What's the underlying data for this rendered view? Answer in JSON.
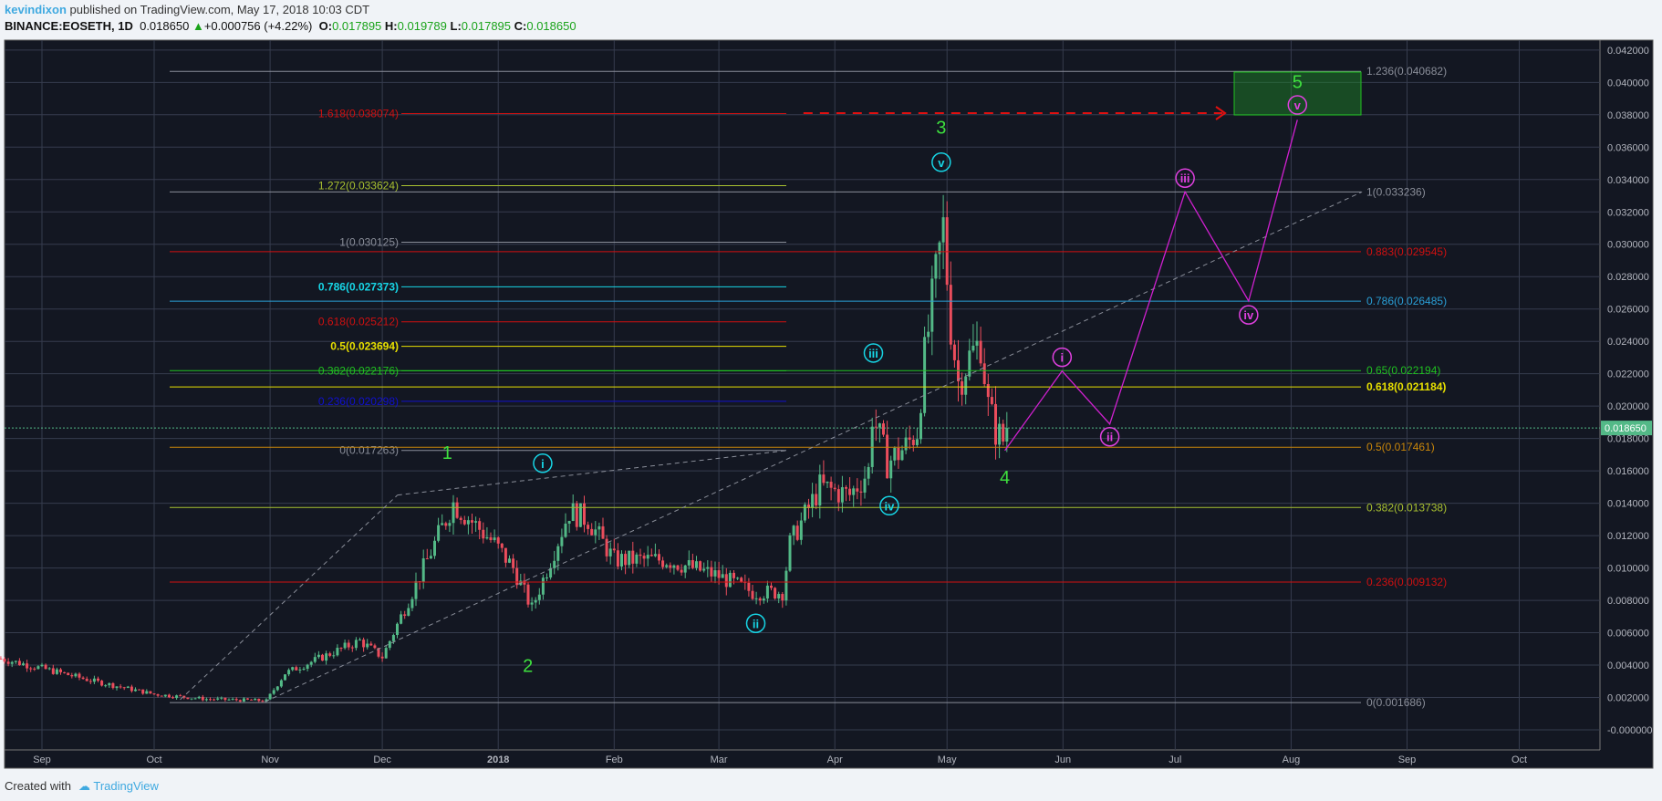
{
  "header": {
    "author": "kevindixon",
    "published": "published on TradingView.com, May 17, 2018 10:03 CDT",
    "symbol": "BINANCE:EOSETH, 1D",
    "last": "0.018650",
    "change": "+0.000756 (+4.22%)",
    "o_label": "O:",
    "o": "0.017895",
    "h_label": "H:",
    "h": "0.019789",
    "l_label": "L:",
    "l": "0.017895",
    "c_label": "C:",
    "c": "0.018650"
  },
  "footer": {
    "created": "Created with",
    "brand": "TradingView"
  },
  "colors": {
    "up": "#53b987",
    "down": "#eb4d5c",
    "bg": "#131722",
    "grid": "#363c4e"
  },
  "chart_data": {
    "type": "candlestick",
    "title": "BINANCE:EOSETH, 1D",
    "ylim": [
      0,
      0.042
    ],
    "yticks": [
      "0.042000",
      "0.040000",
      "0.038000",
      "0.036000",
      "0.034000",
      "0.032000",
      "0.030000",
      "0.028000",
      "0.026000",
      "0.024000",
      "0.022000",
      "0.020000",
      "0.018000",
      "0.016000",
      "0.014000",
      "0.012000",
      "0.010000",
      "0.008000",
      "0.006000",
      "0.004000",
      "0.002000",
      "-0.000000"
    ],
    "xticks": [
      {
        "label": "Sep",
        "date": "2017-09-01"
      },
      {
        "label": "Oct",
        "date": "2017-10-01"
      },
      {
        "label": "Nov",
        "date": "2017-11-01"
      },
      {
        "label": "Dec",
        "date": "2017-12-01"
      },
      {
        "label": "2018",
        "date": "2018-01-01",
        "bold": true
      },
      {
        "label": "Feb",
        "date": "2018-02-01"
      },
      {
        "label": "Mar",
        "date": "2018-03-01"
      },
      {
        "label": "Apr",
        "date": "2018-04-01"
      },
      {
        "label": "May",
        "date": "2018-05-01"
      },
      {
        "label": "Jun",
        "date": "2018-06-01"
      },
      {
        "label": "Jul",
        "date": "2018-07-01"
      },
      {
        "label": "Aug",
        "date": "2018-08-01"
      },
      {
        "label": "Sep",
        "date": "2018-09-01"
      },
      {
        "label": "Oct",
        "date": "2018-10-01"
      }
    ],
    "last_price": {
      "value": 0.01865,
      "label": "0.018650"
    },
    "close_path": [
      [
        "2017-08-21",
        0.0044
      ],
      [
        "2017-09-01",
        0.0038
      ],
      [
        "2017-09-15",
        0.003
      ],
      [
        "2017-10-01",
        0.0022
      ],
      [
        "2017-10-15",
        0.0019
      ],
      [
        "2017-10-31",
        0.0018
      ],
      [
        "2017-11-05",
        0.0035
      ],
      [
        "2017-11-15",
        0.0045
      ],
      [
        "2017-11-25",
        0.0055
      ],
      [
        "2017-12-01",
        0.0045
      ],
      [
        "2017-12-08",
        0.008
      ],
      [
        "2017-12-15",
        0.0115
      ],
      [
        "2017-12-20",
        0.014
      ],
      [
        "2017-12-31",
        0.0115
      ],
      [
        "2018-01-05",
        0.01
      ],
      [
        "2018-01-10",
        0.0075
      ],
      [
        "2018-01-15",
        0.0105
      ],
      [
        "2018-01-20",
        0.0135
      ],
      [
        "2018-01-25",
        0.013
      ],
      [
        "2018-02-01",
        0.0105
      ],
      [
        "2018-02-15",
        0.0105
      ],
      [
        "2018-03-01",
        0.0095
      ],
      [
        "2018-03-10",
        0.0085
      ],
      [
        "2018-03-18",
        0.0085
      ],
      [
        "2018-03-20",
        0.0115
      ],
      [
        "2018-03-28",
        0.015
      ],
      [
        "2018-04-05",
        0.0145
      ],
      [
        "2018-04-10",
        0.016
      ],
      [
        "2018-04-11",
        0.0195
      ],
      [
        "2018-04-15",
        0.0165
      ],
      [
        "2018-04-20",
        0.0175
      ],
      [
        "2018-04-23",
        0.0185
      ],
      [
        "2018-04-25",
        0.023
      ],
      [
        "2018-04-28",
        0.028
      ],
      [
        "2018-04-30",
        0.031
      ],
      [
        "2018-05-02",
        0.025
      ],
      [
        "2018-05-04",
        0.0215
      ],
      [
        "2018-05-07",
        0.023
      ],
      [
        "2018-05-10",
        0.024
      ],
      [
        "2018-05-12",
        0.02
      ],
      [
        "2018-05-14",
        0.0185
      ],
      [
        "2018-05-16",
        0.0179
      ],
      [
        "2018-05-17",
        0.01865
      ]
    ],
    "fib_left": [
      {
        "label": "1.618(0.038074)",
        "price": 0.038074,
        "color": "#d01010"
      },
      {
        "label": "1.272(0.033624)",
        "price": 0.033624,
        "color": "#a8c030"
      },
      {
        "label": "1(0.030125)",
        "price": 0.030125,
        "color": "#8a8e99"
      },
      {
        "label": "0.786(0.027373)",
        "price": 0.027373,
        "color": "#17d6e6",
        "bold": true
      },
      {
        "label": "0.618(0.025212)",
        "price": 0.025212,
        "color": "#d01010"
      },
      {
        "label": "0.5(0.023694)",
        "price": 0.023694,
        "color": "#e8e000",
        "bold": true
      },
      {
        "label": "0.382(0.022176)",
        "price": 0.022176,
        "color": "#20c020"
      },
      {
        "label": "0.236(0.020298)",
        "price": 0.020298,
        "color": "#1010d0"
      },
      {
        "label": "0(0.017263)",
        "price": 0.017263,
        "color": "#8a8e99"
      }
    ],
    "fib_right": [
      {
        "label": "1.236(0.040682)",
        "price": 0.040682,
        "color": "#8a8e99"
      },
      {
        "label": "1(0.033236)",
        "price": 0.033236,
        "color": "#8a8e99"
      },
      {
        "label": "0.883(0.029545)",
        "price": 0.029545,
        "color": "#d01010"
      },
      {
        "label": "0.786(0.026485)",
        "price": 0.026485,
        "color": "#2a9fd6"
      },
      {
        "label": "0.65(0.022194)",
        "price": 0.022194,
        "color": "#20c020"
      },
      {
        "label": "0.618(0.021184)",
        "price": 0.021184,
        "color": "#e8e000",
        "bold": true
      },
      {
        "label": "0.5(0.017461)",
        "price": 0.017461,
        "color": "#c8860a"
      },
      {
        "label": "0.382(0.013738)",
        "price": 0.013738,
        "color": "#a8c030"
      },
      {
        "label": "0.236(0.009132)",
        "price": 0.009132,
        "color": "#d01010"
      },
      {
        "label": "0(0.001686)",
        "price": 0.001686,
        "color": "#8a8e99"
      }
    ],
    "wave_major": [
      "1",
      "2",
      "3",
      "4",
      "5"
    ],
    "wave_minor_cyan": [
      "i",
      "ii",
      "iii",
      "iv",
      "v"
    ],
    "wave_minor_magenta": [
      "i",
      "ii",
      "iii",
      "iv",
      "v"
    ]
  }
}
